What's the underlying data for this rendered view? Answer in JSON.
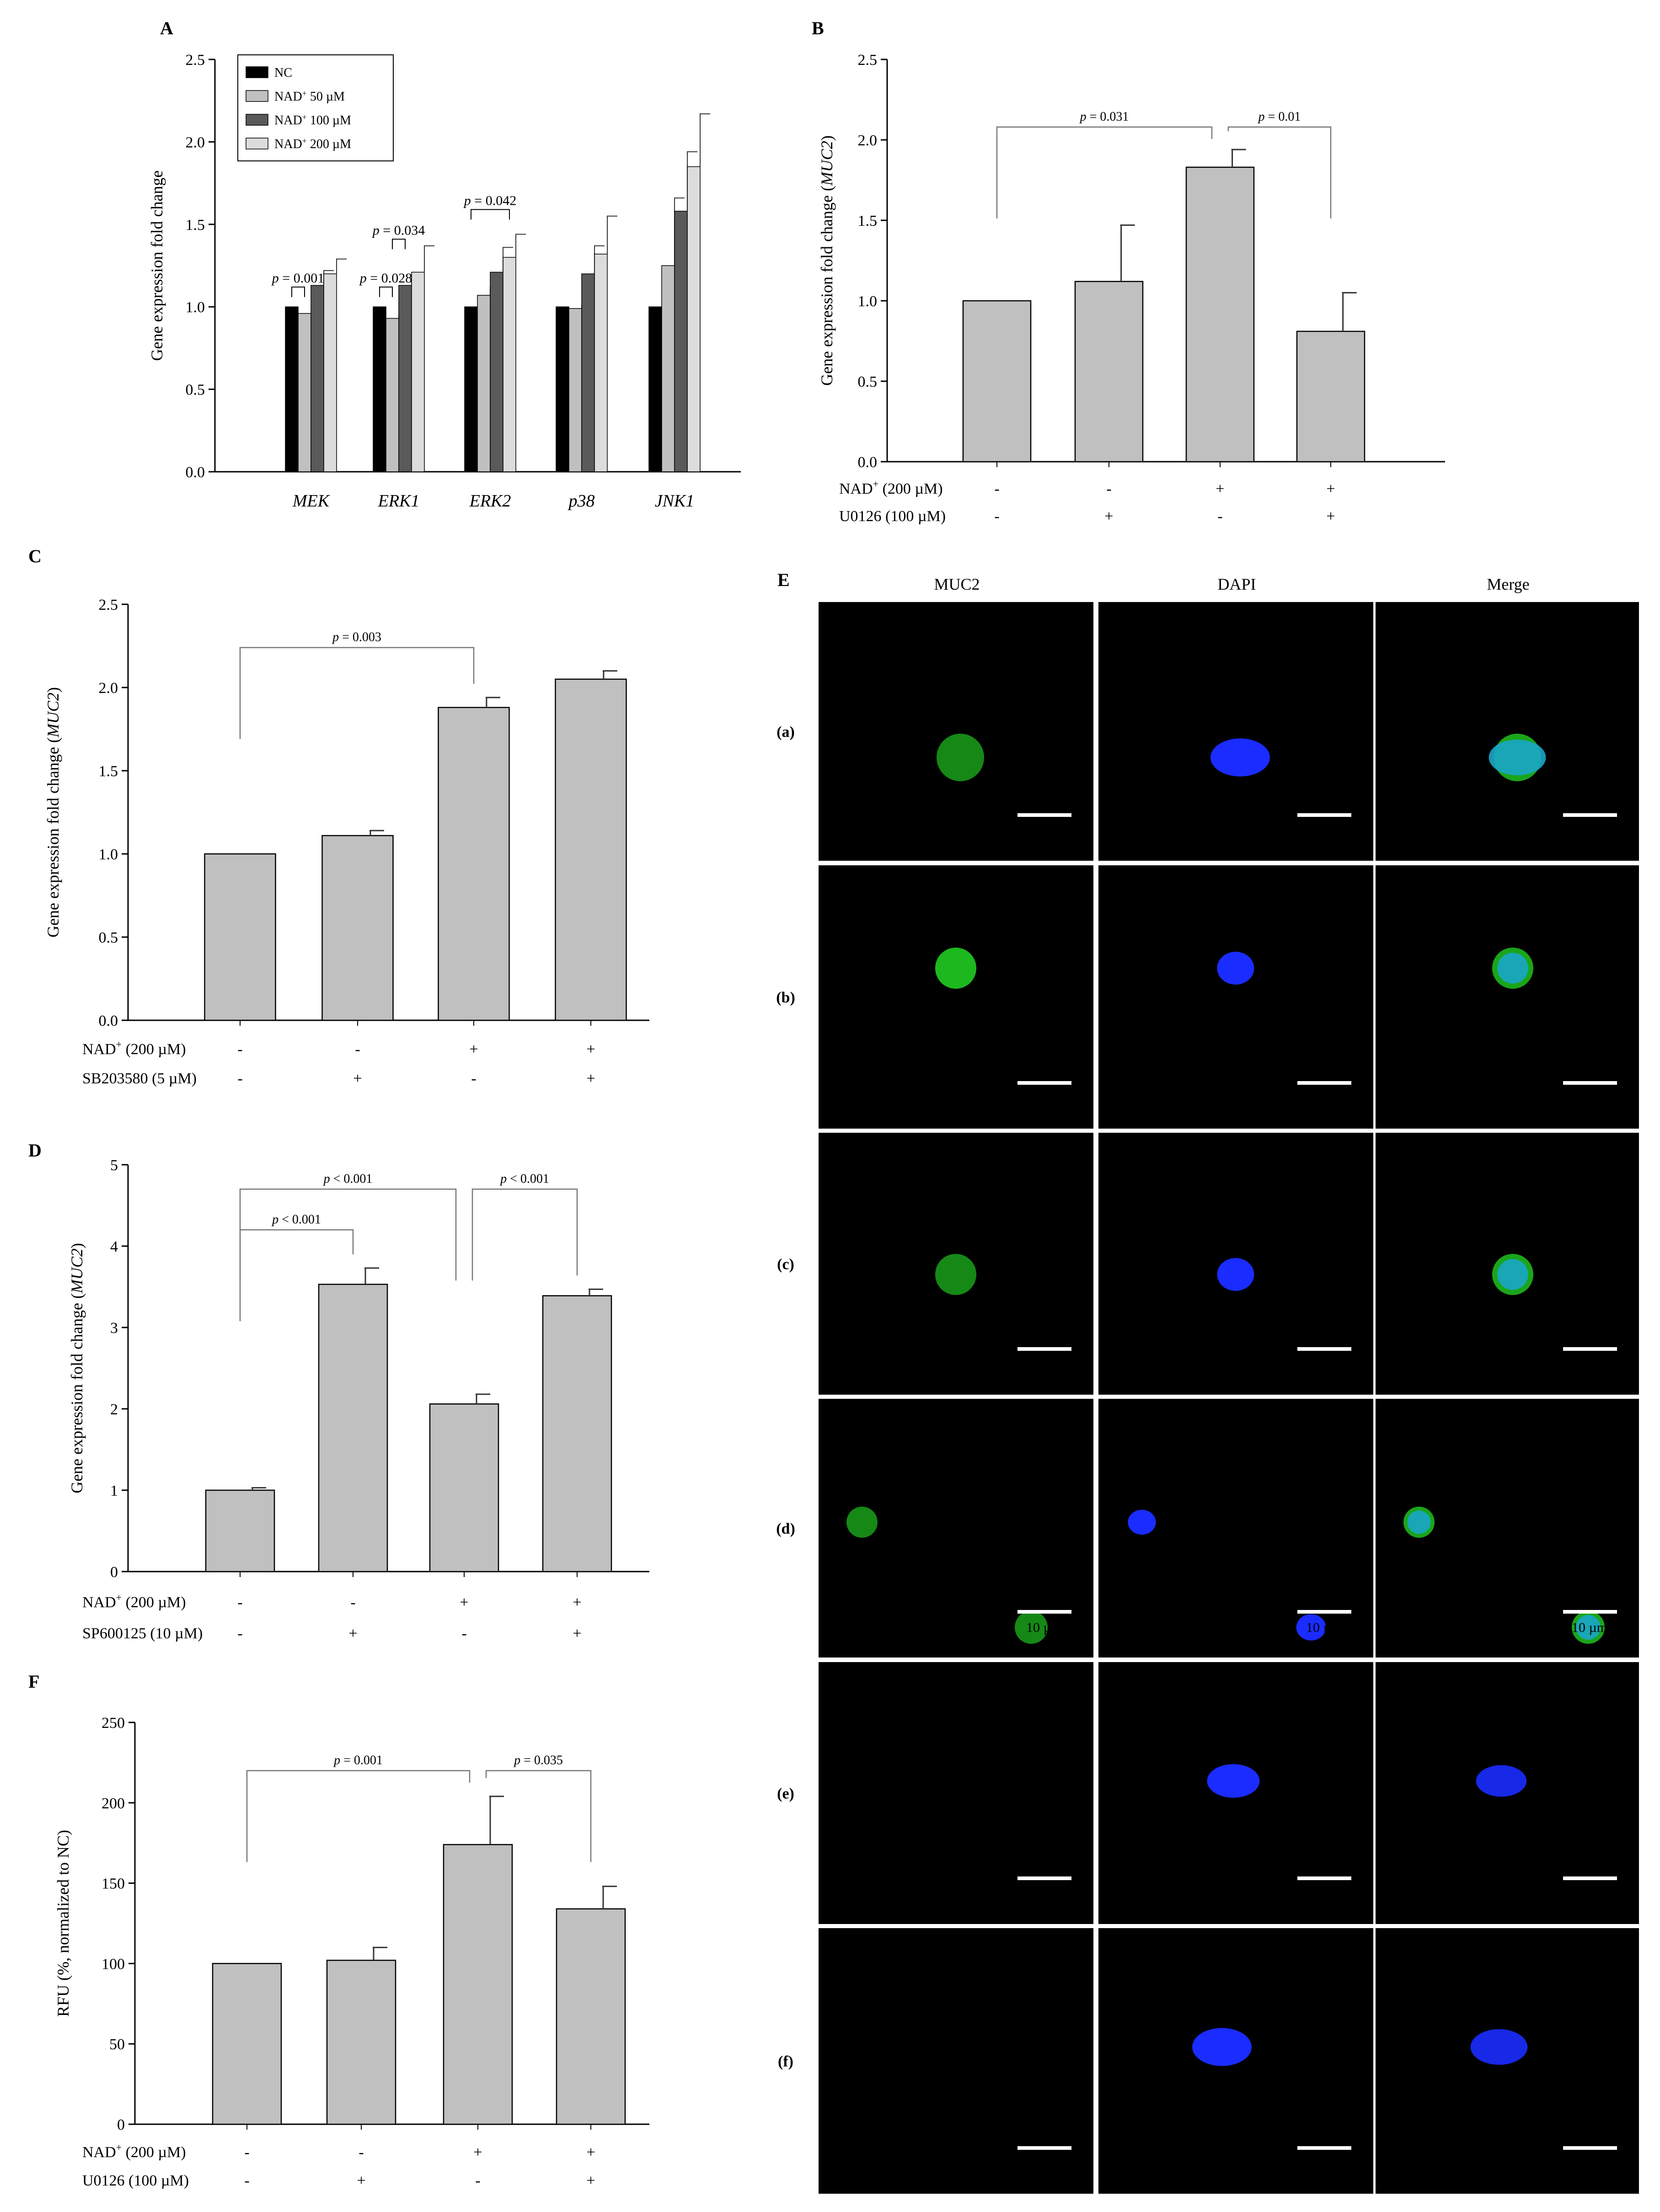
{
  "chart_data": [
    {
      "panel": "A",
      "type": "bar",
      "ylabel": "Gene expression fold change",
      "ylim": [
        0,
        2.5
      ],
      "yticks": [
        0.0,
        0.5,
        1.0,
        1.5,
        2.0,
        2.5
      ],
      "categories": [
        "MEK",
        "ERK1",
        "ERK2",
        "p38",
        "JNK1"
      ],
      "series": [
        {
          "name": "NC",
          "name_sup": "",
          "name_tail": "",
          "color": "#000000",
          "values": [
            1.0,
            1.0,
            1.0,
            1.0,
            1.0
          ],
          "errors": [
            0,
            0,
            0,
            0,
            0
          ]
        },
        {
          "name": "NAD",
          "name_sup": "+",
          "name_tail": " 50 µM",
          "color": "#c0c0c0",
          "values": [
            0.96,
            0.93,
            1.07,
            0.99,
            1.25
          ],
          "errors": [
            0.0,
            0.02,
            0.05,
            0.02,
            0.41
          ]
        },
        {
          "name": "NAD",
          "name_sup": "+",
          "name_tail": " 100 µM",
          "color": "#5a5a5a",
          "values": [
            1.13,
            1.13,
            1.21,
            1.2,
            1.58
          ],
          "errors": [
            0.09,
            0.05,
            0.15,
            0.17,
            0.36
          ]
        },
        {
          "name": "NAD",
          "name_sup": "+",
          "name_tail": " 200 µM",
          "color": "#dcdcdc",
          "values": [
            1.2,
            1.21,
            1.3,
            1.32,
            1.85
          ],
          "errors": [
            0.09,
            0.16,
            0.14,
            0.23,
            0.32
          ]
        }
      ],
      "annotations": [
        {
          "text_p": "p",
          "text_rest": " = 0.001",
          "cat": 0,
          "from": 0,
          "to": 1,
          "y": 1.12
        },
        {
          "text_p": "p",
          "text_rest": " = 0.028",
          "cat": 1,
          "from": 0,
          "to": 1,
          "y": 1.12
        },
        {
          "text_p": "p",
          "text_rest": " = 0.034",
          "cat": 1,
          "from": 1,
          "to": 2,
          "y": 1.41
        },
        {
          "text_p": "p",
          "text_rest": " = 0.042",
          "cat": 2,
          "from": 0,
          "to": 3,
          "y": 1.59
        }
      ]
    },
    {
      "panel": "B",
      "type": "bar",
      "ylabel_pre": "Gene expression fold change (",
      "ylabel_it": "MUC2",
      "ylabel_post": ")",
      "ylim": [
        0,
        2.5
      ],
      "yticks": [
        0.0,
        0.5,
        1.0,
        1.5,
        2.0,
        2.5
      ],
      "values": [
        1.0,
        1.12,
        1.83,
        0.81
      ],
      "errors": [
        0,
        0.35,
        0.11,
        0.24
      ],
      "treatments": [
        {
          "label": "NAD",
          "sup": "+",
          "rest": " (200 µM)",
          "signs": [
            "-",
            "-",
            "+",
            "+"
          ]
        },
        {
          "label": "U0126 (100 µM)",
          "sup": "",
          "rest": "",
          "signs": [
            "-",
            "+",
            "-",
            "+"
          ]
        }
      ],
      "brackets": [
        {
          "from": 0,
          "to": 2,
          "y": 2.08,
          "text_p": "p",
          "text_rest": " = 0.031"
        },
        {
          "from": 2,
          "to": 3,
          "y": 2.08,
          "text_p": "p",
          "text_rest": " = 0.01"
        }
      ]
    },
    {
      "panel": "C",
      "type": "bar",
      "ylabel_pre": "Gene expression fold change (",
      "ylabel_it": "MUC2",
      "ylabel_post": ")",
      "ylim": [
        0,
        2.5
      ],
      "yticks": [
        0.0,
        0.5,
        1.0,
        1.5,
        2.0,
        2.5
      ],
      "values": [
        1.0,
        1.11,
        1.88,
        2.05
      ],
      "errors": [
        0,
        0.03,
        0.06,
        0.05
      ],
      "treatments": [
        {
          "label": "NAD",
          "sup": "+",
          "rest": " (200 µM)",
          "signs": [
            "-",
            "-",
            "+",
            "+"
          ]
        },
        {
          "label": "SB203580 (5 µM)",
          "sup": "",
          "rest": "",
          "signs": [
            "-",
            "+",
            "-",
            "+"
          ]
        }
      ],
      "brackets": [
        {
          "from": 0,
          "to": 2,
          "y": 2.24,
          "text_p": "p",
          "text_rest": " = 0.003"
        }
      ]
    },
    {
      "panel": "D",
      "type": "bar",
      "ylabel_pre": "Gene expression fold change (",
      "ylabel_it": "MUC2",
      "ylabel_post": ")",
      "ylim": [
        0,
        5
      ],
      "yticks": [
        0,
        1,
        2,
        3,
        4,
        5
      ],
      "values": [
        1.0,
        3.53,
        2.06,
        3.39
      ],
      "errors": [
        0.03,
        0.2,
        0.12,
        0.08
      ],
      "treatments": [
        {
          "label": "NAD",
          "sup": "+",
          "rest": " (200 µM)",
          "signs": [
            "-",
            "-",
            "+",
            "+"
          ]
        },
        {
          "label": "SP600125 (10 µM)",
          "sup": "",
          "rest": "",
          "signs": [
            "-",
            "+",
            "-",
            "+"
          ]
        }
      ],
      "brackets": [
        {
          "from": 0,
          "to": 2,
          "y": 4.7,
          "text_p": "p",
          "text_rest": " < 0.001"
        },
        {
          "from": 2,
          "to": 3,
          "y": 4.7,
          "text_p": "p",
          "text_rest": " < 0.001"
        },
        {
          "from": 0,
          "to": 1,
          "y": 4.2,
          "text_p": "p",
          "text_rest": " < 0.001"
        }
      ]
    },
    {
      "panel": "F",
      "type": "bar",
      "ylabel": "RFU (%, normalized to NC)",
      "ylim": [
        0,
        250
      ],
      "yticks": [
        0,
        50,
        100,
        150,
        200,
        250
      ],
      "values": [
        100,
        102,
        174,
        134
      ],
      "errors": [
        0,
        8,
        30,
        14
      ],
      "treatments": [
        {
          "label": "NAD",
          "sup": "+",
          "rest": " (200 µM)",
          "signs": [
            "-",
            "-",
            "+",
            "+"
          ]
        },
        {
          "label": "U0126  (100 µM)",
          "sup": "",
          "rest": "",
          "signs": [
            "-",
            "+",
            "-",
            "+"
          ]
        }
      ],
      "brackets": [
        {
          "from": 0,
          "to": 2,
          "y": 220,
          "text_p": "p",
          "text_rest": " = 0.001"
        },
        {
          "from": 2,
          "to": 3,
          "y": 220,
          "text_p": "p",
          "text_rest": " = 0.035"
        }
      ]
    }
  ],
  "microscopy": {
    "panel": "E",
    "columns": [
      "MUC2",
      "DAPI",
      "Merge"
    ],
    "rows": [
      "(a)",
      "(b)",
      "(c)",
      "(d)",
      "(e)",
      "(f)"
    ],
    "scale_bar": "10 µm",
    "green": "#1fc21f",
    "blue": "#1a2cff",
    "merge": "#1aa6c8"
  }
}
